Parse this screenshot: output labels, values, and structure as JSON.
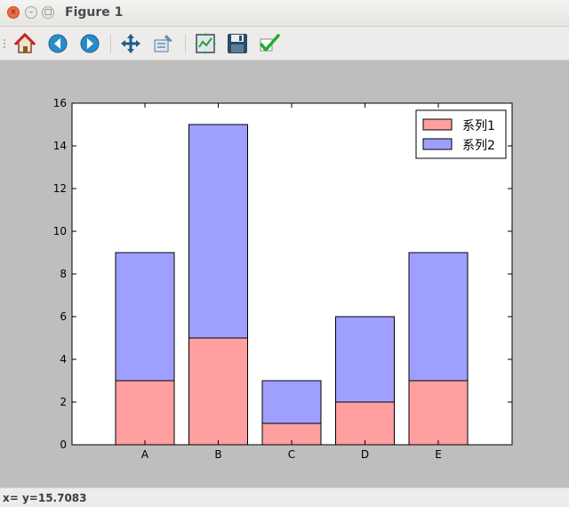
{
  "window": {
    "title": "Figure 1",
    "close_glyph": "×",
    "minimize_glyph": "–",
    "maximize_glyph": "□"
  },
  "toolbar": {
    "buttons": [
      {
        "name": "home-button",
        "icon": "home-icon"
      },
      {
        "name": "back-button",
        "icon": "back-arrow-icon"
      },
      {
        "name": "forward-button",
        "icon": "forward-arrow-icon"
      },
      {
        "name": "pan-button",
        "icon": "move-icon"
      },
      {
        "name": "zoom-button",
        "icon": "zoom-rect-icon"
      },
      {
        "name": "subplots-button",
        "icon": "subplots-icon"
      },
      {
        "name": "save-button",
        "icon": "floppy-icon"
      },
      {
        "name": "edit-button",
        "icon": "check-icon"
      }
    ]
  },
  "status": {
    "text": "x= y=15.7083"
  },
  "chart_data": {
    "type": "bar",
    "stacked": true,
    "categories": [
      "A",
      "B",
      "C",
      "D",
      "E"
    ],
    "series": [
      {
        "name": "系列1",
        "values": [
          3,
          5,
          1,
          2,
          3
        ],
        "color": "#ff9f9f"
      },
      {
        "name": "系列2",
        "values": [
          6,
          10,
          2,
          4,
          6
        ],
        "color": "#9f9fff"
      }
    ],
    "ylim": [
      0,
      16
    ],
    "yticks": [
      0,
      2,
      4,
      6,
      8,
      10,
      12,
      14,
      16
    ],
    "grid": false,
    "legend": "top-right",
    "title": "",
    "xlabel": "",
    "ylabel": ""
  }
}
